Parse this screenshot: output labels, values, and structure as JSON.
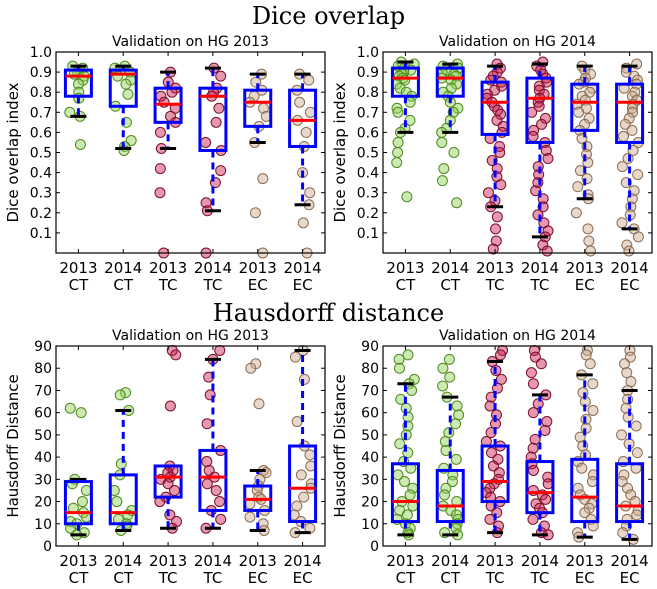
{
  "section_titles": {
    "dice": "Dice overlap",
    "hausdorff": "Hausdorff distance"
  },
  "colors": {
    "CT": "#8fd14f",
    "TC": "#c71c4c",
    "EC": "#c9a98c",
    "box": "#0000ff",
    "median": "#ff0000",
    "whisker_cap": "#000000"
  },
  "chart_data": [
    {
      "type": "box",
      "title": "Validation on HG 2013",
      "ylabel": "Dice overlap index",
      "ylim": [
        0,
        1
      ],
      "yticks": [
        "0.1",
        "0.2",
        "0.3",
        "0.4",
        "0.5",
        "0.6",
        "0.7",
        "0.8",
        "0.9",
        "1.0"
      ],
      "categories": [
        "2013\nCT",
        "2014\nCT",
        "2013\nTC",
        "2014\nTC",
        "2013\nEC",
        "2014\nEC"
      ],
      "boxes": [
        {
          "q1": 0.78,
          "median": 0.88,
          "q3": 0.91,
          "low": 0.68,
          "high": 0.93,
          "pts": [
            0.93,
            0.92,
            0.91,
            0.9,
            0.89,
            0.88,
            0.86,
            0.84,
            0.8,
            0.77,
            0.7,
            0.68,
            0.54
          ]
        },
        {
          "q1": 0.73,
          "median": 0.89,
          "q3": 0.91,
          "low": 0.52,
          "high": 0.93,
          "pts": [
            0.93,
            0.92,
            0.91,
            0.9,
            0.88,
            0.86,
            0.84,
            0.79,
            0.73,
            0.65,
            0.56,
            0.53,
            0.51
          ]
        },
        {
          "q1": 0.65,
          "median": 0.74,
          "q3": 0.82,
          "low": 0.52,
          "high": 0.9,
          "pts": [
            0.9,
            0.85,
            0.82,
            0.8,
            0.78,
            0.75,
            0.72,
            0.68,
            0.65,
            0.6,
            0.52,
            0.42,
            0.3,
            0.0
          ]
        },
        {
          "q1": 0.51,
          "median": 0.78,
          "q3": 0.82,
          "low": 0.21,
          "high": 0.92,
          "pts": [
            0.92,
            0.88,
            0.82,
            0.8,
            0.78,
            0.72,
            0.65,
            0.55,
            0.51,
            0.41,
            0.35,
            0.25,
            0.21,
            0.0
          ]
        },
        {
          "q1": 0.63,
          "median": 0.75,
          "q3": 0.81,
          "low": 0.55,
          "high": 0.89,
          "pts": [
            0.89,
            0.85,
            0.81,
            0.78,
            0.75,
            0.72,
            0.68,
            0.63,
            0.55,
            0.37,
            0.2,
            0.0
          ]
        },
        {
          "q1": 0.53,
          "median": 0.66,
          "q3": 0.81,
          "low": 0.24,
          "high": 0.89,
          "pts": [
            0.89,
            0.86,
            0.81,
            0.75,
            0.7,
            0.66,
            0.6,
            0.53,
            0.4,
            0.3,
            0.24,
            0.15,
            0.0
          ]
        }
      ]
    },
    {
      "type": "box",
      "title": "Validation on HG 2014",
      "ylabel": "Dice overlap index",
      "ylim": [
        0,
        1
      ],
      "yticks": [
        "0.1",
        "0.2",
        "0.3",
        "0.4",
        "0.5",
        "0.6",
        "0.7",
        "0.8",
        "0.9",
        "1.0"
      ],
      "categories": [
        "2013\nCT",
        "2014\nCT",
        "2013\nTC",
        "2014\nTC",
        "2013\nEC",
        "2014\nEC"
      ],
      "boxes": [
        {
          "q1": 0.78,
          "median": 0.87,
          "q3": 0.92,
          "low": 0.6,
          "high": 0.95,
          "pts": [
            0.95,
            0.94,
            0.93,
            0.92,
            0.91,
            0.9,
            0.89,
            0.88,
            0.87,
            0.86,
            0.84,
            0.82,
            0.8,
            0.78,
            0.75,
            0.72,
            0.7,
            0.66,
            0.62,
            0.6,
            0.55,
            0.5,
            0.45,
            0.28
          ]
        },
        {
          "q1": 0.78,
          "median": 0.87,
          "q3": 0.92,
          "low": 0.6,
          "high": 0.94,
          "pts": [
            0.94,
            0.93,
            0.92,
            0.91,
            0.9,
            0.89,
            0.88,
            0.87,
            0.86,
            0.84,
            0.82,
            0.8,
            0.78,
            0.75,
            0.72,
            0.7,
            0.66,
            0.62,
            0.6,
            0.55,
            0.5,
            0.42,
            0.36,
            0.25
          ]
        },
        {
          "q1": 0.59,
          "median": 0.75,
          "q3": 0.85,
          "low": 0.23,
          "high": 0.93,
          "pts": [
            0.94,
            0.92,
            0.9,
            0.88,
            0.86,
            0.85,
            0.83,
            0.81,
            0.79,
            0.77,
            0.75,
            0.73,
            0.71,
            0.69,
            0.66,
            0.63,
            0.6,
            0.57,
            0.53,
            0.5,
            0.46,
            0.42,
            0.38,
            0.34,
            0.3,
            0.26,
            0.23,
            0.18,
            0.12,
            0.06,
            0.02
          ]
        },
        {
          "q1": 0.55,
          "median": 0.77,
          "q3": 0.87,
          "low": 0.08,
          "high": 0.94,
          "pts": [
            0.95,
            0.93,
            0.91,
            0.89,
            0.87,
            0.85,
            0.83,
            0.81,
            0.79,
            0.77,
            0.75,
            0.73,
            0.7,
            0.67,
            0.64,
            0.61,
            0.58,
            0.55,
            0.51,
            0.47,
            0.43,
            0.39,
            0.35,
            0.31,
            0.27,
            0.23,
            0.19,
            0.15,
            0.11,
            0.08,
            0.04,
            0.01
          ]
        },
        {
          "q1": 0.61,
          "median": 0.75,
          "q3": 0.84,
          "low": 0.27,
          "high": 0.93,
          "pts": [
            0.93,
            0.91,
            0.89,
            0.87,
            0.85,
            0.84,
            0.82,
            0.8,
            0.78,
            0.76,
            0.74,
            0.72,
            0.7,
            0.67,
            0.64,
            0.61,
            0.57,
            0.53,
            0.49,
            0.45,
            0.41,
            0.37,
            0.33,
            0.29,
            0.27,
            0.2,
            0.12,
            0.06,
            0.01
          ]
        },
        {
          "q1": 0.55,
          "median": 0.75,
          "q3": 0.84,
          "low": 0.12,
          "high": 0.93,
          "pts": [
            0.94,
            0.92,
            0.9,
            0.88,
            0.86,
            0.84,
            0.82,
            0.8,
            0.78,
            0.76,
            0.74,
            0.72,
            0.7,
            0.67,
            0.64,
            0.61,
            0.58,
            0.55,
            0.51,
            0.47,
            0.43,
            0.39,
            0.35,
            0.31,
            0.27,
            0.23,
            0.19,
            0.15,
            0.12,
            0.08,
            0.04,
            0.01
          ]
        }
      ]
    },
    {
      "type": "box",
      "title": "Validation on HG 2013",
      "ylabel": "Hausdorff Distance",
      "ylim": [
        0,
        90
      ],
      "yticks": [
        "0",
        "10",
        "20",
        "30",
        "40",
        "50",
        "60",
        "70",
        "80",
        "90"
      ],
      "categories": [
        "2013\nCT",
        "2014\nCT",
        "2013\nTC",
        "2014\nTC",
        "2013\nEC",
        "2014\nEC"
      ],
      "boxes": [
        {
          "q1": 10,
          "median": 15,
          "q3": 29,
          "low": 5,
          "high": 30,
          "pts": [
            62,
            60,
            30,
            28,
            25,
            20,
            17,
            15,
            13,
            11,
            10,
            8,
            6,
            5
          ]
        },
        {
          "q1": 10,
          "median": 15,
          "q3": 32,
          "low": 7,
          "high": 61,
          "pts": [
            69,
            68,
            61,
            37,
            32,
            25,
            20,
            16,
            14,
            12,
            10,
            9,
            7
          ]
        },
        {
          "q1": 22,
          "median": 31,
          "q3": 36,
          "low": 8,
          "high": 36,
          "pts": [
            88,
            86,
            63,
            36,
            34,
            33,
            31,
            30,
            28,
            25,
            22,
            20,
            14,
            11,
            8
          ]
        },
        {
          "q1": 16,
          "median": 31,
          "q3": 43,
          "low": 8,
          "high": 84,
          "pts": [
            88,
            84,
            76,
            68,
            55,
            43,
            38,
            34,
            31,
            28,
            25,
            20,
            16,
            12,
            8
          ]
        },
        {
          "q1": 16,
          "median": 21,
          "q3": 27,
          "low": 7,
          "high": 34,
          "pts": [
            82,
            80,
            64,
            34,
            33,
            30,
            27,
            25,
            22,
            21,
            19,
            16,
            13,
            10,
            7
          ]
        },
        {
          "q1": 11,
          "median": 26,
          "q3": 45,
          "low": 6,
          "high": 88,
          "pts": [
            88,
            85,
            75,
            56,
            45,
            41,
            36,
            32,
            28,
            26,
            22,
            18,
            14,
            11,
            8,
            6
          ]
        }
      ]
    },
    {
      "type": "box",
      "title": "Validation on HG 2014",
      "ylabel": "Hausdorff Distance",
      "ylim": [
        0,
        90
      ],
      "yticks": [
        "0",
        "10",
        "20",
        "30",
        "40",
        "50",
        "60",
        "70",
        "80",
        "90"
      ],
      "categories": [
        "2013\nCT",
        "2014\nCT",
        "2013\nTC",
        "2014\nTC",
        "2013\nEC",
        "2014\nEC"
      ],
      "boxes": [
        {
          "q1": 11,
          "median": 20,
          "q3": 37,
          "low": 5,
          "high": 73,
          "pts": [
            86,
            84,
            80,
            75,
            73,
            70,
            66,
            62,
            58,
            54,
            50,
            46,
            42,
            38,
            35,
            32,
            29,
            26,
            23,
            20,
            18,
            16,
            14,
            12,
            10,
            8,
            6,
            5
          ]
        },
        {
          "q1": 11,
          "median": 18,
          "q3": 34,
          "low": 5,
          "high": 67,
          "pts": [
            84,
            80,
            76,
            72,
            67,
            63,
            59,
            55,
            51,
            47,
            43,
            39,
            35,
            32,
            29,
            26,
            23,
            20,
            18,
            16,
            14,
            12,
            10,
            8,
            6,
            5
          ]
        },
        {
          "q1": 20,
          "median": 29,
          "q3": 45,
          "low": 6,
          "high": 83,
          "pts": [
            88,
            86,
            83,
            79,
            75,
            71,
            67,
            63,
            59,
            55,
            51,
            47,
            45,
            42,
            39,
            36,
            33,
            30,
            28,
            26,
            24,
            22,
            20,
            18,
            15,
            12,
            9,
            6
          ]
        },
        {
          "q1": 15,
          "median": 24,
          "q3": 38,
          "low": 5,
          "high": 68,
          "pts": [
            88,
            85,
            82,
            78,
            73,
            68,
            64,
            60,
            56,
            52,
            48,
            44,
            40,
            37,
            34,
            31,
            28,
            25,
            23,
            21,
            19,
            17,
            15,
            12,
            9,
            6,
            5
          ]
        },
        {
          "q1": 11,
          "median": 22,
          "q3": 39,
          "low": 4,
          "high": 77,
          "pts": [
            88,
            86,
            82,
            77,
            73,
            69,
            65,
            61,
            57,
            53,
            49,
            45,
            41,
            38,
            35,
            32,
            29,
            26,
            23,
            21,
            19,
            17,
            15,
            12,
            9,
            6,
            4
          ]
        },
        {
          "q1": 11,
          "median": 18,
          "q3": 37,
          "low": 3,
          "high": 70,
          "pts": [
            88,
            85,
            82,
            78,
            74,
            70,
            66,
            62,
            58,
            54,
            50,
            46,
            42,
            38,
            35,
            32,
            29,
            26,
            23,
            20,
            18,
            16,
            14,
            12,
            9,
            6,
            3
          ]
        }
      ]
    }
  ]
}
